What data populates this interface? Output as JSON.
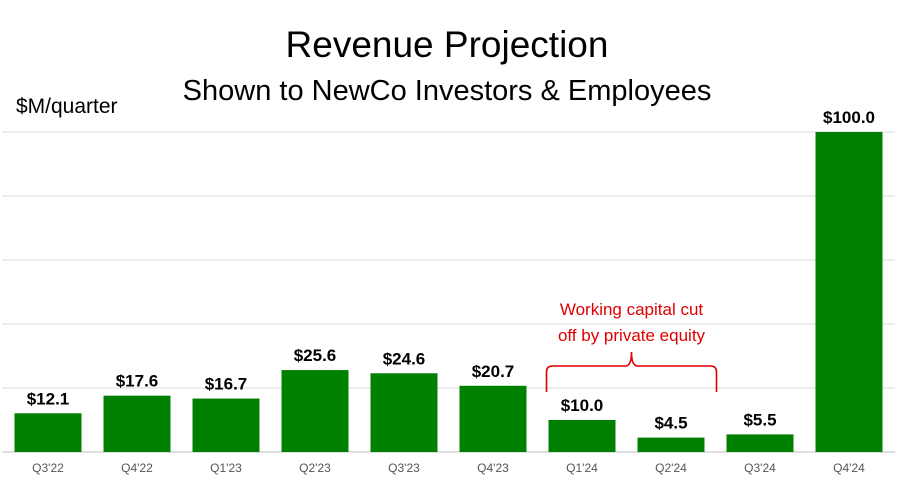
{
  "chart_data": {
    "type": "bar",
    "title": "Revenue Projection",
    "subtitle": "Shown to NewCo Investors & Employees",
    "ylabel": "$M/quarter",
    "xlabel": "",
    "categories": [
      "Q3'22",
      "Q4'22",
      "Q1'23",
      "Q2'23",
      "Q3'23",
      "Q4'23",
      "Q1'24",
      "Q2'24",
      "Q3'24",
      "Q4'24"
    ],
    "values": [
      12.1,
      17.6,
      16.7,
      25.6,
      24.6,
      20.7,
      10.0,
      4.5,
      5.5,
      100.0
    ],
    "value_labels": [
      "$12.1",
      "$17.6",
      "$16.7",
      "$25.6",
      "$24.6",
      "$20.7",
      "$10.0",
      "$4.5",
      "$5.5",
      "$100.0"
    ],
    "ylim": [
      0,
      100
    ],
    "grid": true,
    "bar_color": "#008000",
    "annotation": {
      "line1": "Working capital cut",
      "line2": "off by private equity",
      "color": "#e00000",
      "categories": [
        "Q1'24",
        "Q3'24"
      ]
    }
  }
}
